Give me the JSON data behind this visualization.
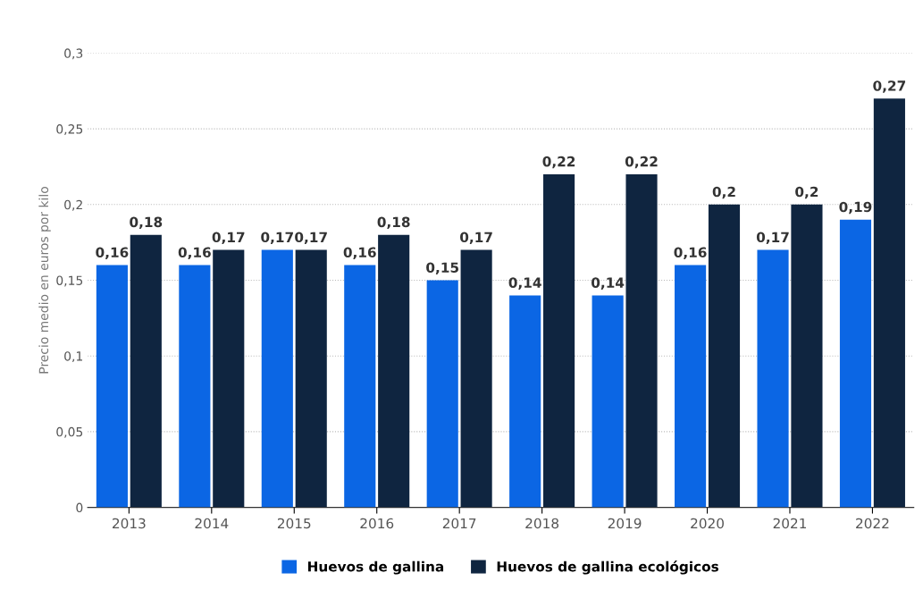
{
  "chart_data": {
    "type": "bar",
    "ylabel": "Precio medio en euros por kilo",
    "categories": [
      "2013",
      "2014",
      "2015",
      "2016",
      "2017",
      "2018",
      "2019",
      "2020",
      "2021",
      "2022"
    ],
    "series": [
      {
        "name": "Huevos de gallina",
        "color": "#0b66e4",
        "values": [
          0.16,
          0.16,
          0.17,
          0.16,
          0.15,
          0.14,
          0.14,
          0.16,
          0.17,
          0.19
        ],
        "value_labels": [
          "0,16",
          "0,16",
          "0,17",
          "0,16",
          "0,15",
          "0,14",
          "0,14",
          "0,16",
          "0,17",
          "0,19"
        ]
      },
      {
        "name": "Huevos de gallina ecológicos",
        "color": "#0f2540",
        "values": [
          0.18,
          0.17,
          0.17,
          0.18,
          0.17,
          0.22,
          0.22,
          0.2,
          0.2,
          0.27
        ],
        "value_labels": [
          "0,18",
          "0,17",
          "0,17",
          "0,18",
          "0,17",
          "0,22",
          "0,22",
          "0,2",
          "0,2",
          "0,27"
        ]
      }
    ],
    "ylim": [
      0,
      0.3
    ],
    "yticks": [
      {
        "value": 0,
        "label": "0"
      },
      {
        "value": 0.05,
        "label": "0,05"
      },
      {
        "value": 0.1,
        "label": "0,1"
      },
      {
        "value": 0.15,
        "label": "0,15"
      },
      {
        "value": 0.2,
        "label": "0,2"
      },
      {
        "value": 0.25,
        "label": "0,25"
      },
      {
        "value": 0.3,
        "label": "0,3"
      }
    ],
    "grid": "y",
    "legend": "bottom"
  }
}
